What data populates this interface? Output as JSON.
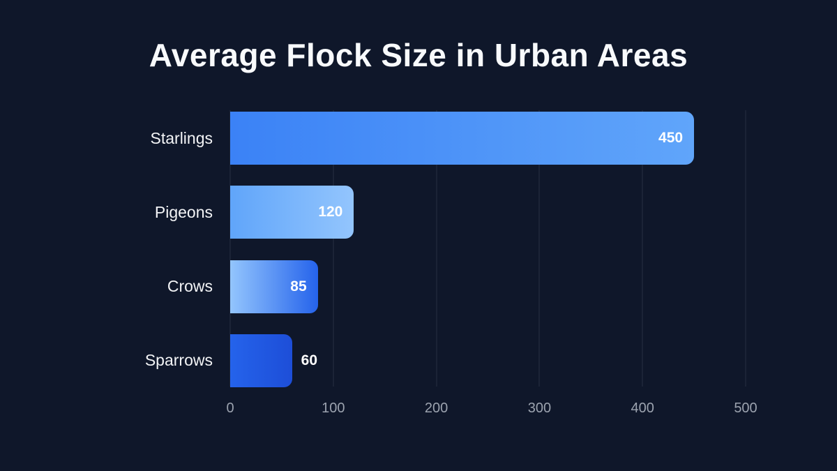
{
  "chart_data": {
    "type": "bar",
    "orientation": "horizontal",
    "title": "Average Flock Size in Urban Areas",
    "categories": [
      "Starlings",
      "Pigeons",
      "Crows",
      "Sparrows"
    ],
    "values": [
      450,
      120,
      85,
      60
    ],
    "value_labels": [
      "450",
      "120",
      "85",
      "60"
    ],
    "value_label_position": [
      "inside",
      "inside",
      "inside",
      "outside"
    ],
    "bar_gradients": [
      {
        "from": "#3b82f6",
        "to": "#60a5fa"
      },
      {
        "from": "#60a5fa",
        "to": "#93c5fd"
      },
      {
        "from": "#93c5fd",
        "to": "#2563eb"
      },
      {
        "from": "#2563eb",
        "to": "#1d4ed8"
      }
    ],
    "xlabel": "",
    "ylabel": "",
    "xlim": [
      0,
      500
    ],
    "xticks": [
      "0",
      "100",
      "200",
      "300",
      "400",
      "500"
    ],
    "grid": true,
    "legend_position": "none",
    "colors": {
      "background": "#0f172a",
      "title": "#f8fafc",
      "category_label": "#f3f4f6",
      "tick_label": "#9ca3af",
      "value_label": "#ffffff",
      "gridline": "rgba(148,163,184,0.18)"
    }
  }
}
